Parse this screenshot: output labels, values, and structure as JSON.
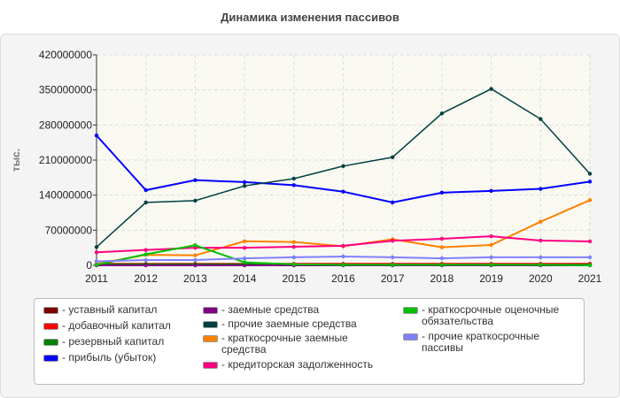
{
  "chart_data": {
    "type": "line",
    "title": "Динамика изменения пассивов",
    "ylabel": "тыс.",
    "xlabel": "",
    "ylim": [
      0,
      420000000
    ],
    "yticks": [
      "0",
      "70000000",
      "140000000",
      "210000000",
      "280000000",
      "350000000",
      "420000000"
    ],
    "x": [
      "2011",
      "2012",
      "2013",
      "2014",
      "2015",
      "2016",
      "2017",
      "2018",
      "2019",
      "2020",
      "2021"
    ],
    "grid": true,
    "legend_position": "bottom",
    "series": [
      {
        "name": "уставный капитал",
        "color": "#800000",
        "values": [
          1000000,
          1000000,
          1000000,
          1000000,
          1000000,
          1000000,
          1000000,
          1000000,
          1000000,
          1000000,
          1000000
        ]
      },
      {
        "name": "добавочный капитал",
        "color": "#ff0000",
        "values": [
          3000000,
          3000000,
          3000000,
          3000000,
          3000000,
          3000000,
          3000000,
          3000000,
          3000000,
          3000000,
          3000000
        ]
      },
      {
        "name": "резервный капитал",
        "color": "#008000",
        "values": [
          2000000,
          2000000,
          2000000,
          2000000,
          1000000,
          1000000,
          1000000,
          1000000,
          1000000,
          1000000,
          1000000
        ]
      },
      {
        "name": "прибыль (убыток)",
        "color": "#0000ff",
        "values": [
          259000000,
          150000000,
          170000000,
          166000000,
          160000000,
          147000000,
          125500000,
          145000000,
          148500000,
          152600000,
          167000000
        ]
      },
      {
        "name": "заемные средства",
        "color": "#800080",
        "values": [
          0,
          0,
          0,
          0,
          0,
          0,
          0,
          0,
          0,
          0,
          0
        ]
      },
      {
        "name": "прочие заемные средства",
        "color": "#004040",
        "values": [
          36500000,
          125500000,
          129000000,
          158500000,
          173000000,
          198000000,
          215700000,
          303000000,
          352000000,
          292000000,
          182700000
        ]
      },
      {
        "name": "краткосрочные заемные средства",
        "color": "#ff8000",
        "values": [
          3000000,
          21000000,
          20000000,
          48000000,
          46500000,
          38000000,
          52000000,
          36000000,
          40600000,
          87000000,
          130000000
        ]
      },
      {
        "name": "кредиторская задолженность",
        "color": "#ff0080",
        "values": [
          26000000,
          30600000,
          35000000,
          35000000,
          37000000,
          39000000,
          49000000,
          53000000,
          58000000,
          49500000,
          47700000
        ]
      },
      {
        "name": "краткосрочные оценочные обязательства",
        "color": "#00c000",
        "values": [
          1000000,
          22000000,
          40000000,
          6000000,
          2000000,
          1000000,
          1000000,
          1000000,
          1000000,
          1000000,
          0
        ]
      },
      {
        "name": "прочие краткосрочные пассивы",
        "color": "#8080ff",
        "values": [
          8000000,
          10600000,
          10600000,
          14000000,
          16000000,
          17700000,
          16000000,
          14000000,
          16000000,
          16000000,
          16000000
        ]
      }
    ]
  }
}
